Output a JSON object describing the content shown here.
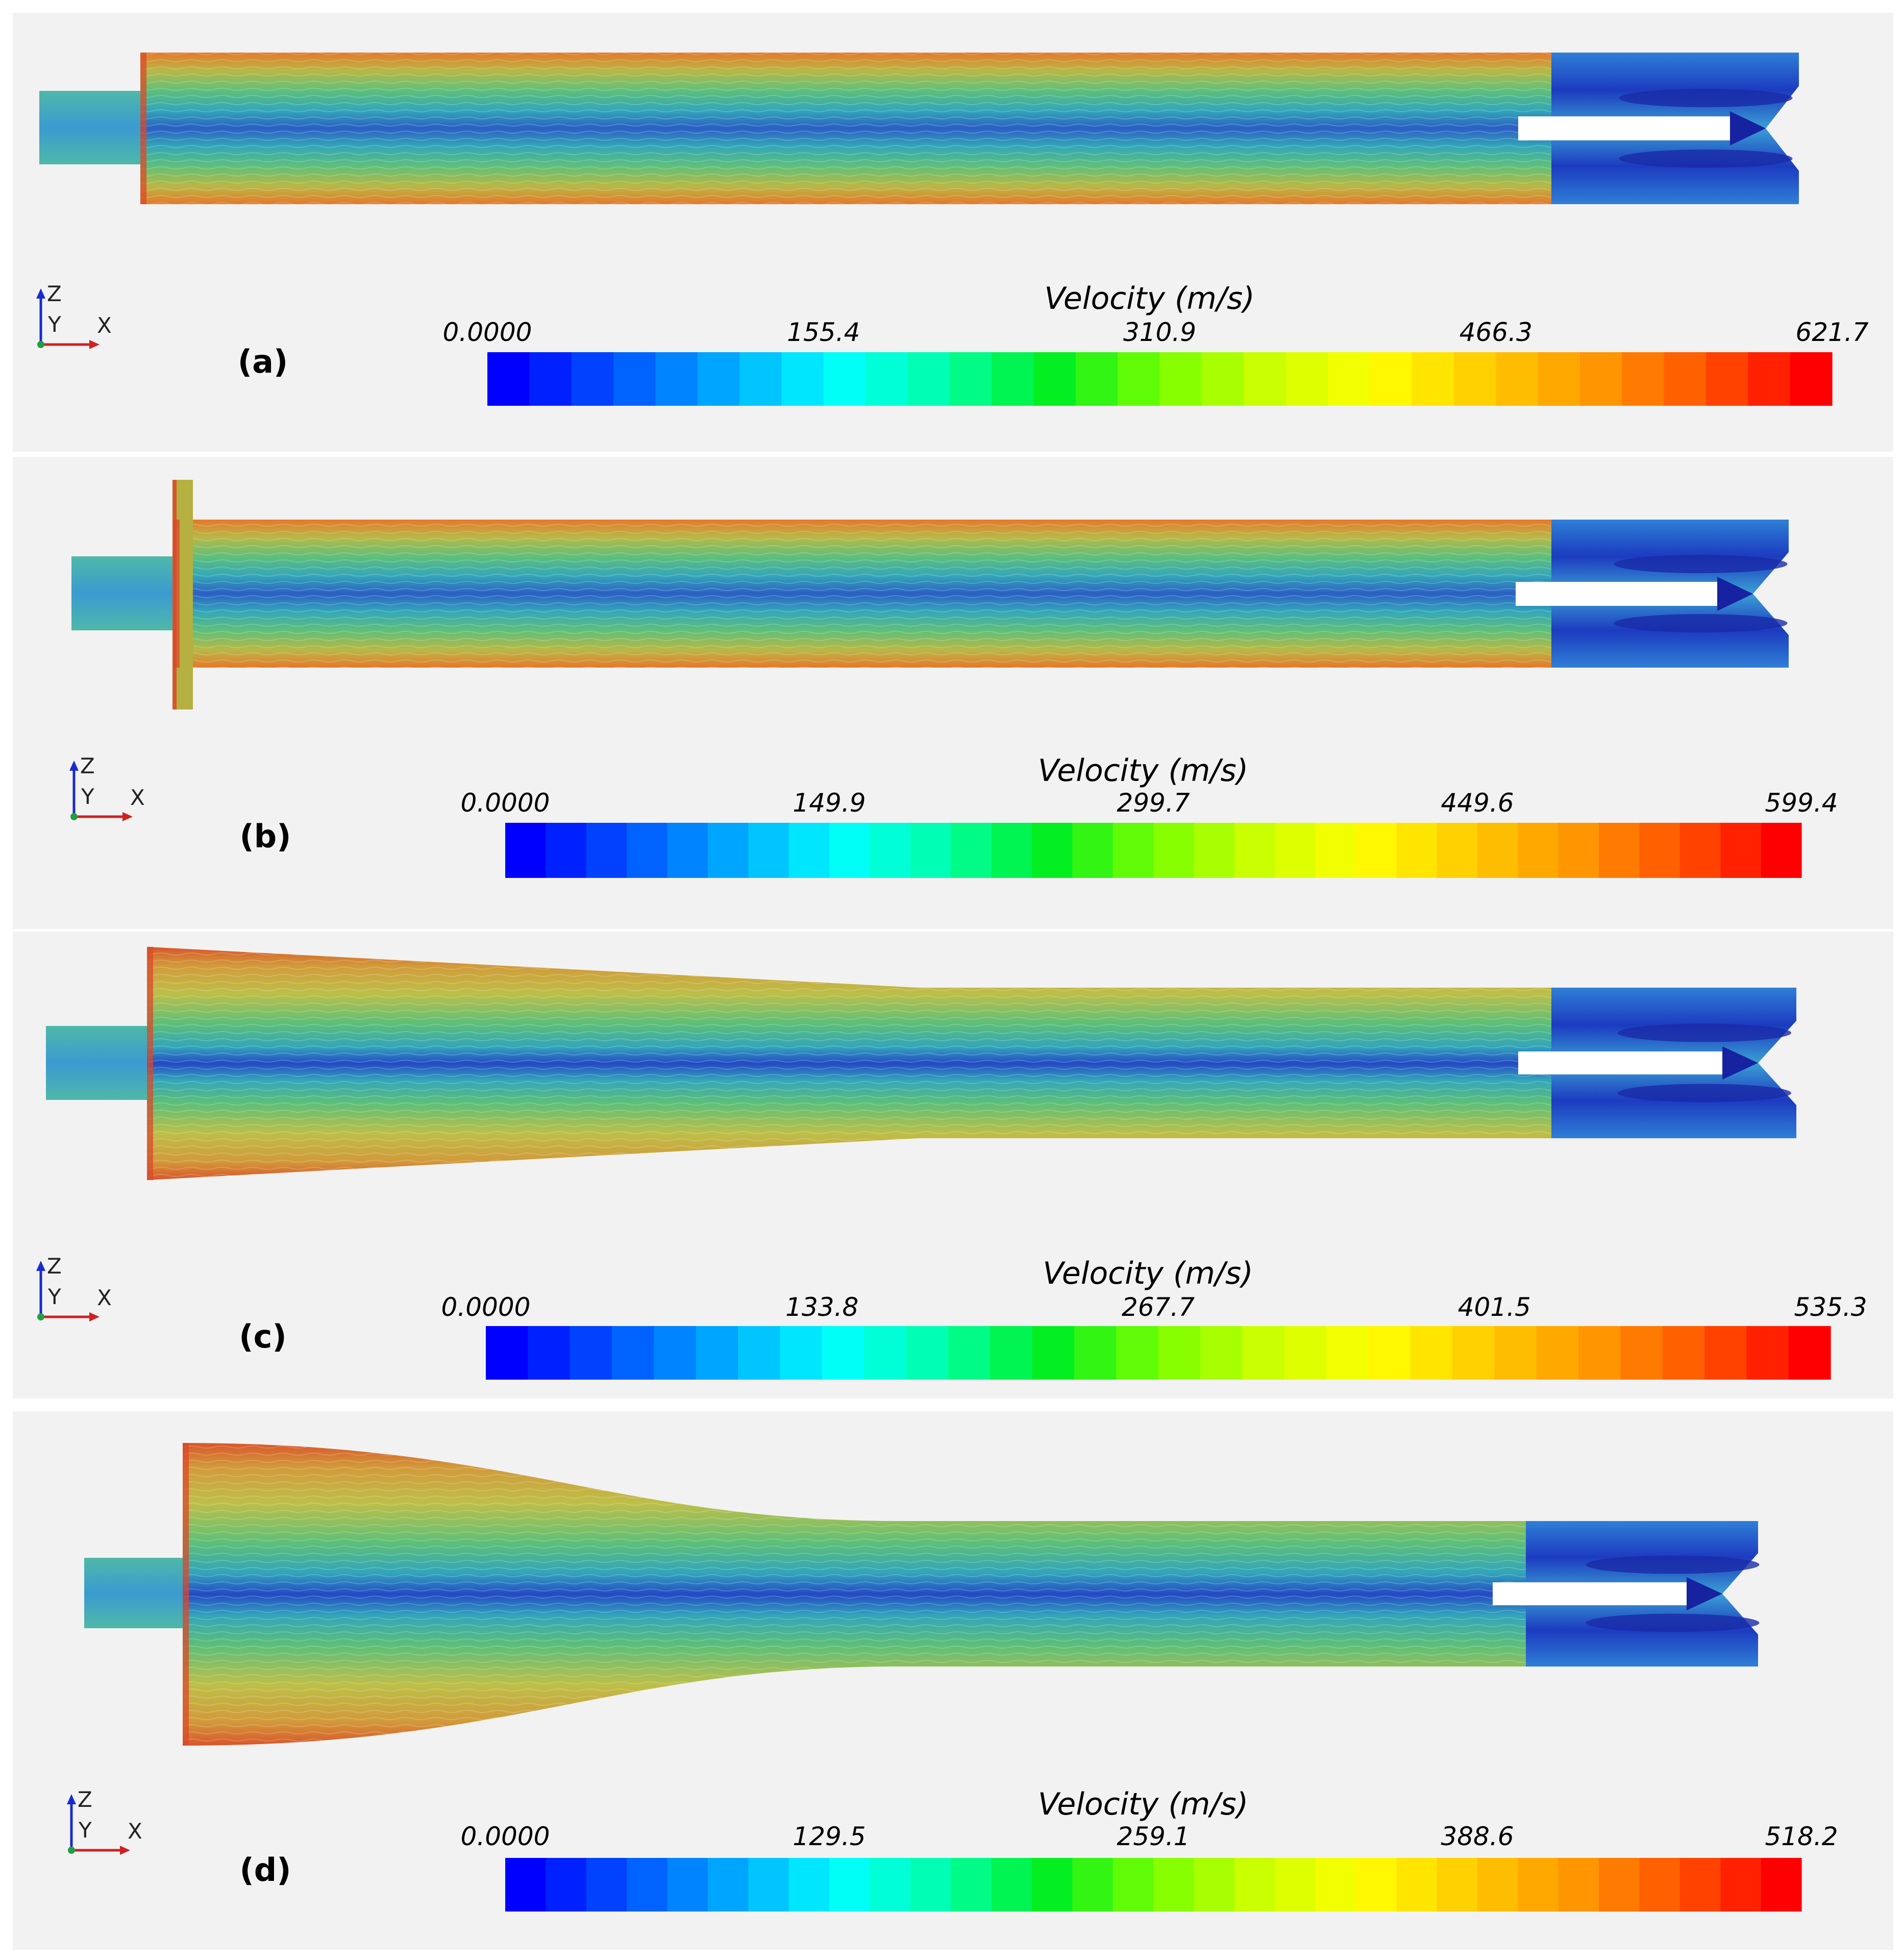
{
  "panels": [
    {
      "label": "(a)",
      "shape": "straight",
      "colorbar": {
        "title": "Velocity (m/s)",
        "ticks": [
          "0.0000",
          "155.4",
          "310.9",
          "466.3",
          "621.7"
        ],
        "min": 0,
        "max": 621.7
      }
    },
    {
      "label": "(b)",
      "shape": "straight-with-flange",
      "colorbar": {
        "title": "Velocity (m/s)",
        "ticks": [
          "0.0000",
          "149.9",
          "299.7",
          "449.6",
          "599.4"
        ],
        "min": 0,
        "max": 599.4
      }
    },
    {
      "label": "(c)",
      "shape": "linear-taper",
      "colorbar": {
        "title": "Velocity (m/s)",
        "ticks": [
          "0.0000",
          "133.8",
          "267.7",
          "401.5",
          "535.3"
        ],
        "min": 0,
        "max": 535.3
      }
    },
    {
      "label": "(d)",
      "shape": "curved-taper",
      "colorbar": {
        "title": "Velocity (m/s)",
        "ticks": [
          "0.0000",
          "129.5",
          "259.1",
          "388.6",
          "518.2"
        ],
        "min": 0,
        "max": 518.2
      }
    }
  ],
  "axis_triad": {
    "z": "Z",
    "y": "Y",
    "x": "X"
  },
  "colormap": [
    "#0000ff",
    "#0055ff",
    "#00aaff",
    "#00ffff",
    "#00ffaa",
    "#00ee22",
    "#77ff00",
    "#ccff00",
    "#ffff00",
    "#ffcc00",
    "#ff9900",
    "#ff5500",
    "#ff0000"
  ],
  "background": "#f2f2f2"
}
